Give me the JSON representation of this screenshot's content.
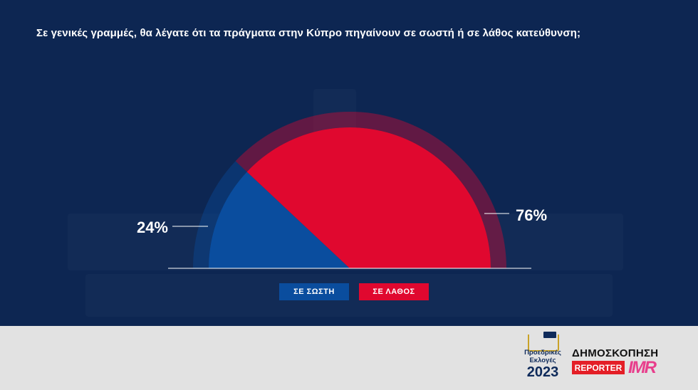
{
  "header": {
    "title": "Σε γενικές γραμμές, θα λέγατε ότι τα πράγματα στην Κύπρο πηγαίνουν σε σωστή ή σε λάθος κατεύθυνση;"
  },
  "chart_data": {
    "type": "pie",
    "style": "half-donut",
    "title": "Σε γενικές γραμμές, θα λέγατε ότι τα πράγματα στην Κύπρο πηγαίνουν σε σωστή ή σε λάθος κατεύθυνση;",
    "slices": [
      {
        "label": "ΣΕ ΣΩΣΤΗ",
        "value": 24,
        "value_label": "24%",
        "color": "#0a4d9e"
      },
      {
        "label": "ΣΕ ΛΑΘΟΣ",
        "value": 76,
        "value_label": "76%",
        "color": "#e0082f"
      }
    ],
    "legend_placement": "bottom",
    "background_color": "#0d2652"
  },
  "footer": {
    "event_logo": {
      "line1": "Προεδρικές",
      "line2": "Εκλογές",
      "year": "2023"
    },
    "poll_label": "ΔΗΜΟΣΚΟΠΗΣΗ",
    "brand1": "REPORTER",
    "brand2": "IMR",
    "background_color": "#e2e2e2"
  }
}
